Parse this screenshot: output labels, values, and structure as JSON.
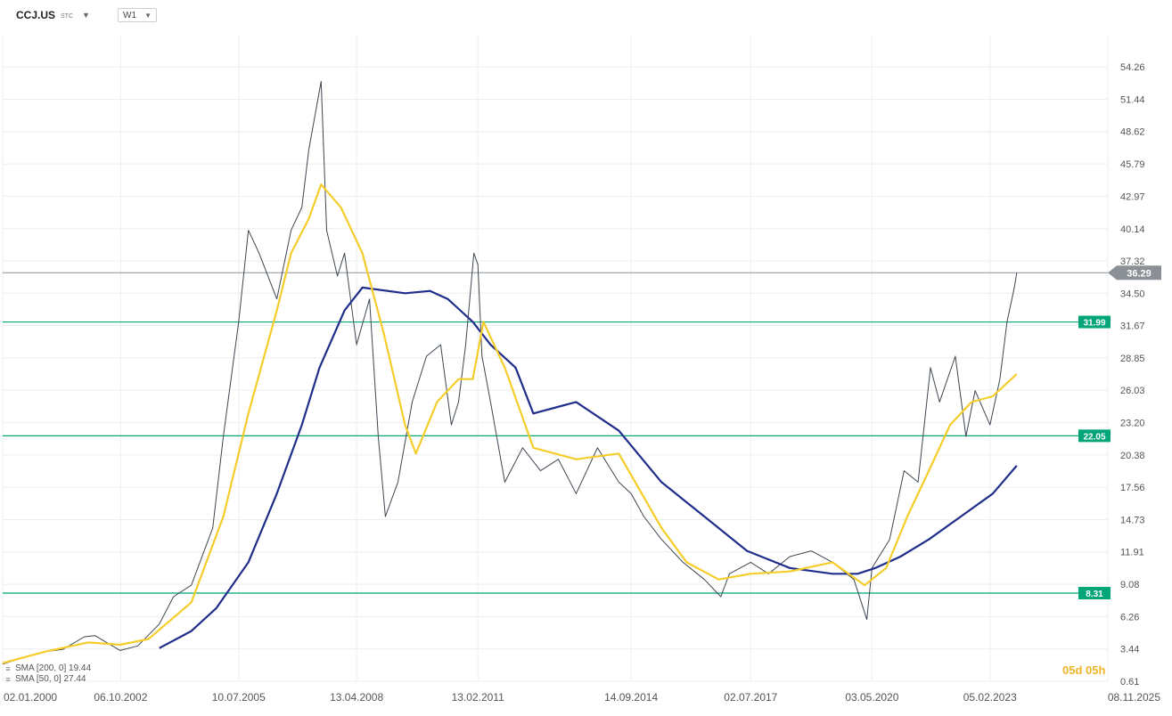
{
  "header": {
    "symbol": "CCJ.US",
    "symbol_suffix": "STC",
    "symbol_dropdown_icon": "caret-down-icon",
    "timeframe": "W1",
    "timeframe_dropdown_icon": "caret-down-icon"
  },
  "indicators": [
    {
      "label": "SMA [200, 0] 19.44",
      "icon": "lines-icon"
    },
    {
      "label": "SMA [50, 0] 27.44",
      "icon": "lines-icon"
    }
  ],
  "countdown": "05d 05h",
  "chart_data": {
    "type": "line",
    "title": "",
    "xlabel": "",
    "ylabel": "",
    "x_ticks": [
      "02.01.2000",
      "06.10.2002",
      "10.07.2005",
      "13.04.2008",
      "13.02.2011",
      "14.09.2014",
      "02.07.2017",
      "03.05.2020",
      "05.02.2023",
      "08.11.2025"
    ],
    "y_ticks": [
      "54.26",
      "51.44",
      "48.62",
      "45.79",
      "42.97",
      "40.14",
      "37.32",
      "34.50",
      "31.67",
      "28.85",
      "26.03",
      "23.20",
      "20.38",
      "17.56",
      "14.73",
      "11.91",
      "9.08",
      "6.26",
      "3.44",
      "0.61"
    ],
    "ylim": [
      0.61,
      57
    ],
    "xlim": [
      "2000-01-02",
      "2025-11-08"
    ],
    "grid": true,
    "last_price": {
      "value": 36.29,
      "label": "36.29",
      "color": "#8a9096"
    },
    "horizontal_levels": [
      {
        "value": 31.99,
        "label": "31.99"
      },
      {
        "value": 22.05,
        "label": "22.05"
      },
      {
        "value": 8.31,
        "label": "8.31"
      }
    ],
    "colors": {
      "price": "#3d4650",
      "sma50": "#f5cd2a",
      "sma200": "#1f2e8a",
      "level": "#00a578",
      "grid": "#eeeeee",
      "last_price": "#8a9096"
    },
    "series": [
      {
        "key": "price",
        "name": "",
        "x": [
          "2000-01-02",
          "2000-06-01",
          "2001-01-01",
          "2001-06-01",
          "2001-12-01",
          "2002-03-01",
          "2002-10-01",
          "2003-03-01",
          "2003-09-01",
          "2004-01-01",
          "2004-06-01",
          "2004-12-01",
          "2005-03-01",
          "2005-07-10",
          "2005-10-01",
          "2006-01-01",
          "2006-06-01",
          "2006-10-01",
          "2007-01-01",
          "2007-03-01",
          "2007-06-15",
          "2007-08-01",
          "2007-11-01",
          "2008-01-01",
          "2008-04-13",
          "2008-08-01",
          "2008-10-15",
          "2008-12-15",
          "2009-04-01",
          "2009-08-01",
          "2009-12-01",
          "2010-04-01",
          "2010-07-01",
          "2010-09-01",
          "2010-11-01",
          "2011-01-10",
          "2011-02-13",
          "2011-03-20",
          "2011-06-01",
          "2011-10-01",
          "2012-03-01",
          "2012-08-01",
          "2013-01-01",
          "2013-06-01",
          "2013-12-01",
          "2014-06-01",
          "2014-09-14",
          "2015-01-01",
          "2015-06-01",
          "2015-12-01",
          "2016-06-01",
          "2016-10-20",
          "2017-01-01",
          "2017-07-02",
          "2017-12-01",
          "2018-06-01",
          "2018-12-01",
          "2019-06-01",
          "2019-12-01",
          "2020-03-20",
          "2020-05-03",
          "2020-10-01",
          "2021-02-01",
          "2021-06-01",
          "2021-09-15",
          "2021-12-01",
          "2022-04-15",
          "2022-07-15",
          "2022-10-01",
          "2023-02-05",
          "2023-05-01",
          "2023-07-01",
          "2023-09-01",
          "2023-09-22"
        ],
        "values": [
          2.1,
          2.6,
          3.2,
          3.4,
          4.5,
          4.6,
          3.3,
          3.7,
          5.6,
          8.0,
          9.0,
          14.0,
          22.0,
          32.0,
          40.0,
          38.0,
          34.0,
          40.0,
          42.0,
          47.0,
          53.0,
          40.0,
          36.0,
          38.0,
          30.0,
          34.0,
          22.0,
          15.0,
          18.0,
          25.0,
          29.0,
          30.0,
          23.0,
          25.0,
          30.0,
          38.0,
          37.0,
          29.0,
          25.0,
          18.0,
          21.0,
          19.0,
          20.0,
          17.0,
          21.0,
          18.0,
          17.0,
          15.0,
          13.0,
          11.0,
          9.5,
          8.0,
          10.0,
          11.0,
          10.0,
          11.5,
          12.0,
          11.0,
          9.5,
          6.0,
          10.5,
          13.0,
          19.0,
          18.0,
          28.0,
          25.0,
          29.0,
          22.0,
          26.0,
          23.0,
          27.0,
          32.0,
          35.0,
          36.29
        ]
      },
      {
        "key": "sma50",
        "name": "",
        "x": [
          "2000-01-02",
          "2001-01-01",
          "2002-01-01",
          "2002-10-01",
          "2003-06-01",
          "2004-06-01",
          "2005-03-01",
          "2005-10-01",
          "2006-06-01",
          "2006-10-01",
          "2007-03-01",
          "2007-06-15",
          "2007-12-01",
          "2008-06-01",
          "2008-12-01",
          "2009-06-01",
          "2009-09-01",
          "2010-03-01",
          "2010-09-01",
          "2011-01-01",
          "2011-04-01",
          "2011-10-01",
          "2012-06-01",
          "2013-06-01",
          "2014-06-01",
          "2015-06-01",
          "2016-01-01",
          "2016-10-01",
          "2017-07-01",
          "2018-06-01",
          "2019-06-01",
          "2020-03-01",
          "2020-09-01",
          "2021-03-01",
          "2021-09-01",
          "2022-03-01",
          "2022-09-01",
          "2023-03-01",
          "2023-09-22"
        ],
        "values": [
          2.2,
          3.2,
          4.0,
          3.8,
          4.3,
          7.5,
          15.0,
          24.0,
          33.0,
          38.0,
          41.0,
          44.0,
          42.0,
          38.0,
          31.0,
          23.0,
          20.5,
          25.0,
          27.0,
          27.0,
          32.0,
          28.0,
          21.0,
          20.0,
          20.5,
          14.0,
          11.0,
          9.5,
          10.0,
          10.2,
          11.0,
          9.0,
          10.5,
          15.0,
          19.0,
          23.0,
          25.0,
          25.5,
          27.44
        ]
      },
      {
        "key": "sma200",
        "name": "",
        "x": [
          "2003-09-01",
          "2004-06-01",
          "2005-01-01",
          "2005-10-01",
          "2006-06-01",
          "2007-01-01",
          "2007-06-01",
          "2008-01-01",
          "2008-06-01",
          "2009-06-01",
          "2010-01-01",
          "2010-06-01",
          "2011-01-01",
          "2011-06-01",
          "2012-01-01",
          "2012-06-01",
          "2013-06-01",
          "2014-06-01",
          "2015-06-01",
          "2016-06-01",
          "2017-06-01",
          "2018-06-01",
          "2019-06-01",
          "2020-01-01",
          "2020-06-01",
          "2021-01-01",
          "2021-09-01",
          "2022-06-01",
          "2023-03-01",
          "2023-09-22"
        ],
        "values": [
          3.5,
          5.0,
          7.0,
          11.0,
          17.0,
          23.0,
          28.0,
          33.0,
          35.0,
          34.5,
          34.7,
          34.0,
          32.0,
          30.0,
          28.0,
          24.0,
          25.0,
          22.5,
          18.0,
          15.0,
          12.0,
          10.5,
          10.0,
          10.0,
          10.5,
          11.5,
          13.0,
          15.0,
          17.0,
          19.44
        ]
      }
    ]
  }
}
